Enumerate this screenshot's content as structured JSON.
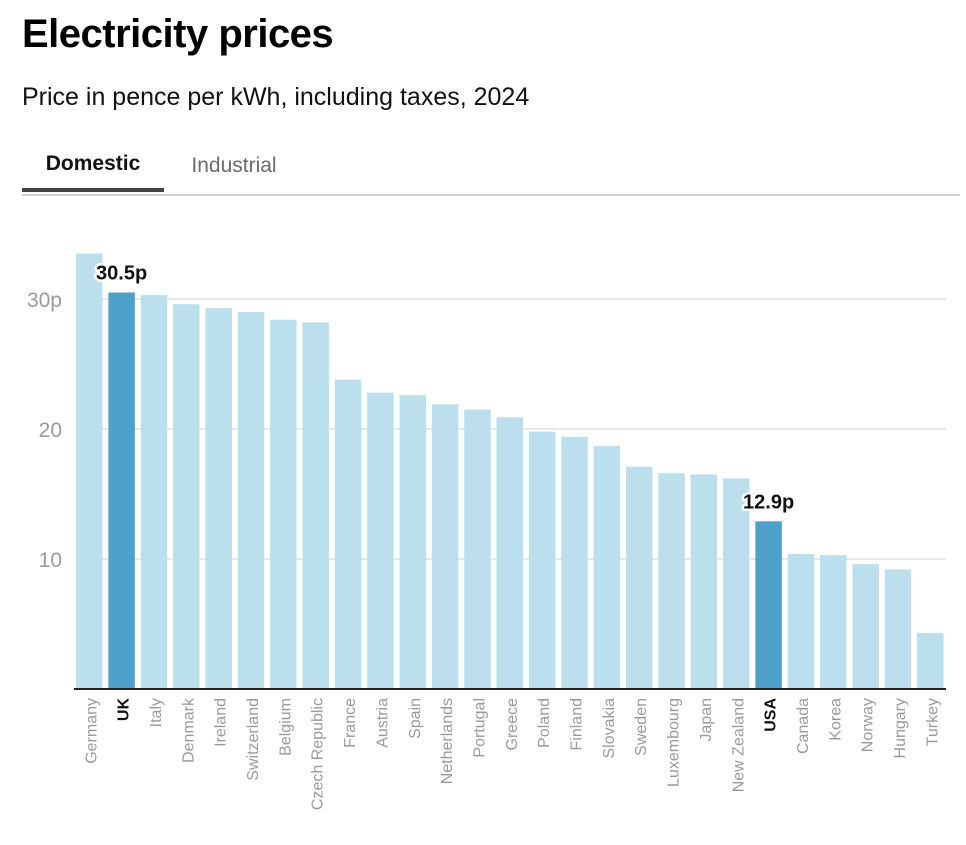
{
  "header": {
    "title": "Electricity prices",
    "subtitle": "Price in pence per kWh, including taxes, 2024"
  },
  "tabs": [
    {
      "label": "Domestic",
      "active": true
    },
    {
      "label": "Industrial",
      "active": false
    }
  ],
  "colors": {
    "bar": "#bcdfed",
    "highlight": "#4fa1ca",
    "grid": "#e1e1e1",
    "axis": "#222222",
    "tick_label": "#9a9a9a"
  },
  "chart_data": {
    "type": "bar",
    "title": "Electricity prices",
    "subtitle": "Price in pence per kWh, including taxes, 2024",
    "xlabel": "",
    "ylabel": "",
    "ylim": [
      0,
      33.5
    ],
    "yticks": [
      10,
      20,
      30
    ],
    "ytick_labels": [
      "10",
      "20",
      "30p"
    ],
    "grid": true,
    "categories": [
      "Germany",
      "UK",
      "Italy",
      "Denmark",
      "Ireland",
      "Switzerland",
      "Belgium",
      "Czech Republic",
      "France",
      "Austria",
      "Spain",
      "Netherlands",
      "Portugal",
      "Greece",
      "Poland",
      "Finland",
      "Slovakia",
      "Sweden",
      "Luxembourg",
      "Japan",
      "New Zealand",
      "USA",
      "Canada",
      "Korea",
      "Norway",
      "Hungary",
      "Turkey"
    ],
    "values": [
      33.5,
      30.5,
      30.3,
      29.6,
      29.3,
      29.0,
      28.4,
      28.2,
      23.8,
      22.8,
      22.6,
      21.9,
      21.5,
      20.9,
      19.8,
      19.4,
      18.7,
      17.1,
      16.6,
      16.5,
      16.2,
      12.9,
      10.4,
      10.3,
      9.6,
      9.2,
      4.3
    ],
    "highlighted": [
      "UK",
      "USA"
    ],
    "annotations": [
      {
        "category": "UK",
        "text": "30.5p"
      },
      {
        "category": "USA",
        "text": "12.9p"
      }
    ]
  }
}
